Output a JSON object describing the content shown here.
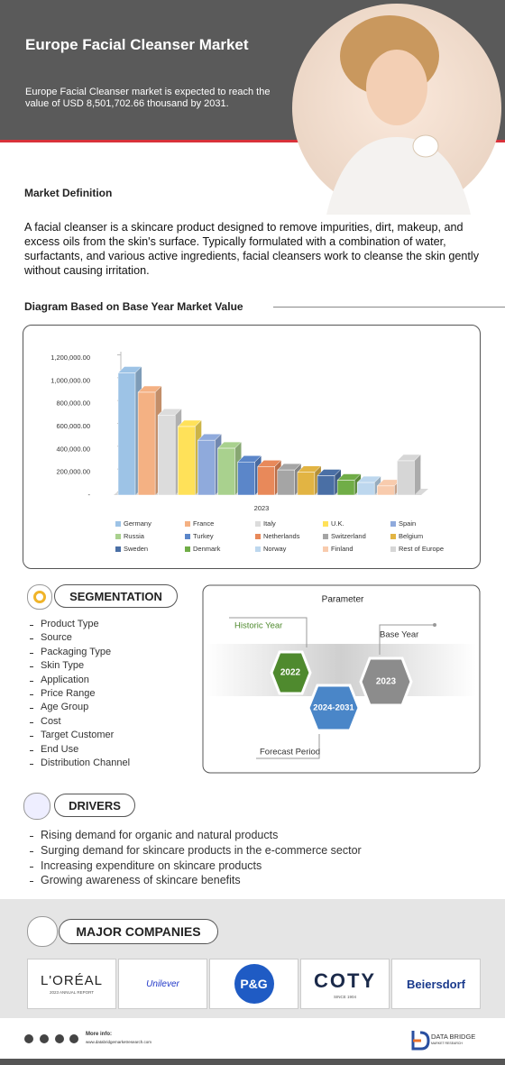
{
  "header": {
    "title": "Europe Facial Cleanser Market",
    "description": "Europe Facial Cleanser market is expected to reach the value of USD 8,501,702.66 thousand by 2031."
  },
  "definition": {
    "heading": "Market Definition",
    "text": "A facial cleanser is a skincare product designed to remove impurities, dirt, makeup, and excess oils from the skin's surface. Typically formulated with a combination of water, surfactants, and various active ingredients, facial cleansers work to cleanse the skin gently without causing irritation."
  },
  "diagram": {
    "heading": "Diagram Based on Base Year Market Value"
  },
  "chart_data": {
    "type": "bar",
    "categories": [
      "2023"
    ],
    "series": [
      {
        "name": "Germany",
        "color": "#9dc3e6",
        "values": [
          1070000
        ]
      },
      {
        "name": "France",
        "color": "#f4b183",
        "values": [
          900000
        ]
      },
      {
        "name": "Italy",
        "color": "#dcdcdc",
        "values": [
          700000
        ]
      },
      {
        "name": "U.K.",
        "color": "#ffe159",
        "values": [
          600000
        ]
      },
      {
        "name": "Spain",
        "color": "#8faadc",
        "values": [
          480000
        ]
      },
      {
        "name": "Russia",
        "color": "#a9d18e",
        "values": [
          410000
        ]
      },
      {
        "name": "Turkey",
        "color": "#5b86c9",
        "values": [
          290000
        ]
      },
      {
        "name": "Netherlands",
        "color": "#e8895a",
        "values": [
          250000
        ]
      },
      {
        "name": "Switzerland",
        "color": "#a5a5a5",
        "values": [
          220000
        ]
      },
      {
        "name": "Belgium",
        "color": "#e2b443",
        "values": [
          200000
        ]
      },
      {
        "name": "Sweden",
        "color": "#4a6fa5",
        "values": [
          170000
        ]
      },
      {
        "name": "Denmark",
        "color": "#70ad47",
        "values": [
          130000
        ]
      },
      {
        "name": "Norway",
        "color": "#bdd7ee",
        "values": [
          110000
        ]
      },
      {
        "name": "Finland",
        "color": "#f8cbad",
        "values": [
          80000
        ]
      },
      {
        "name": "Rest of Europe",
        "color": "#d6d6d6",
        "values": [
          300000
        ]
      }
    ],
    "ylim": [
      0,
      1200000
    ],
    "yticks": [
      {
        "value": 0,
        "label": "-"
      },
      {
        "value": 200000,
        "label": "200,000.00"
      },
      {
        "value": 400000,
        "label": "400,000.00"
      },
      {
        "value": 600000,
        "label": "600,000.00"
      },
      {
        "value": 800000,
        "label": "800,000.00"
      },
      {
        "value": 1000000,
        "label": "1,000,000.00"
      },
      {
        "value": 1200000,
        "label": "1,200,000.00"
      }
    ]
  },
  "segmentation": {
    "title": "SEGMENTATION",
    "items": [
      "Product Type",
      "Source",
      "Packaging Type",
      "Skin Type",
      "Application",
      "Price Range",
      "Age Group",
      "Cost",
      "Target Customer",
      "End Use",
      "Distribution Channel"
    ]
  },
  "parameter": {
    "title": "Parameter",
    "historic_label": "Historic Year",
    "historic_value": "2022",
    "forecast_value": "2024-2031",
    "forecast_label": "Forecast Period",
    "base_label": "Base Year",
    "base_value": "2023"
  },
  "drivers": {
    "title": "DRIVERS",
    "items": [
      "Rising demand for organic and natural products",
      "Surging demand for skincare products in the e-commerce sector",
      "Increasing expenditure on skincare products",
      "Growing awareness of skincare benefits"
    ]
  },
  "companies": {
    "title": "MAJOR COMPANIES",
    "logos": [
      {
        "name": "L'ORÉAL",
        "sub": "2023 ANNUAL REPORT"
      },
      {
        "name": "Unilever"
      },
      {
        "name": "P&G"
      },
      {
        "name": "COTY",
        "sub": "SINCE 1904"
      },
      {
        "name": "Beiersdorf"
      }
    ]
  },
  "footer": {
    "more_info": "More info:",
    "url": "www.databridgemarketresearch.com",
    "brand": "DATA BRIDGE",
    "brand_sub": "MARKET RESEARCH"
  }
}
